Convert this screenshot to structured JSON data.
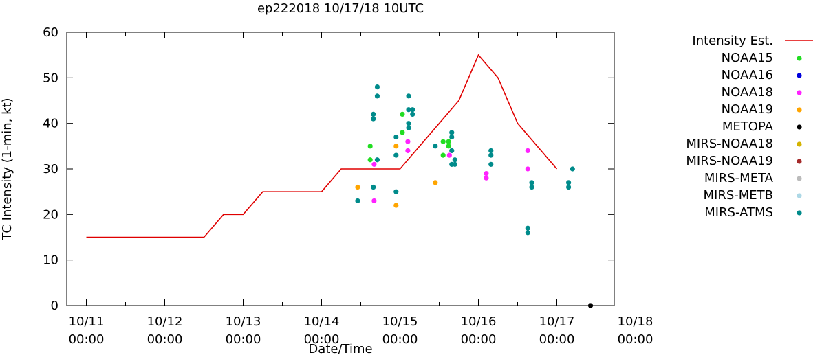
{
  "chart_data": {
    "type": "scatter",
    "title": "ep222018 10/17/18 10UTC",
    "xlabel": "Date/Time",
    "ylabel": "TC Intensity (1-min, kt)",
    "ylim": [
      0,
      60
    ],
    "yticks": [
      0,
      10,
      20,
      30,
      40,
      50,
      60
    ],
    "xlim": [
      0,
      7
    ],
    "x_unit": "days since 10/11 00:00",
    "xticks": [
      {
        "x": 0,
        "line1": "10/11",
        "line2": "00:00"
      },
      {
        "x": 1,
        "line1": "10/12",
        "line2": "00:00"
      },
      {
        "x": 2,
        "line1": "10/13",
        "line2": "00:00"
      },
      {
        "x": 3,
        "line1": "10/14",
        "line2": "00:00"
      },
      {
        "x": 4,
        "line1": "10/15",
        "line2": "00:00"
      },
      {
        "x": 5,
        "line1": "10/16",
        "line2": "00:00"
      },
      {
        "x": 6,
        "line1": "10/17",
        "line2": "00:00"
      },
      {
        "x": 7,
        "line1": "10/18",
        "line2": "00:00"
      }
    ],
    "grid": false,
    "legend_position": "right",
    "series": [
      {
        "name": "Intensity Est.",
        "kind": "line",
        "color": "#e00000",
        "points": [
          [
            0,
            15
          ],
          [
            1.5,
            15
          ],
          [
            1.75,
            20
          ],
          [
            2,
            20
          ],
          [
            2.25,
            25
          ],
          [
            3,
            25
          ],
          [
            3.25,
            30
          ],
          [
            4,
            30
          ],
          [
            4.5,
            40
          ],
          [
            4.75,
            45
          ],
          [
            5,
            55
          ],
          [
            5.25,
            50
          ],
          [
            5.5,
            40
          ],
          [
            6,
            30
          ]
        ]
      },
      {
        "name": "NOAA15",
        "kind": "point",
        "color": "#22dd22",
        "points": [
          [
            3.62,
            35
          ],
          [
            3.62,
            32
          ],
          [
            4.03,
            42
          ],
          [
            4.03,
            38
          ],
          [
            4.55,
            36
          ],
          [
            4.55,
            33
          ],
          [
            4.62,
            36
          ],
          [
            4.62,
            35
          ]
        ]
      },
      {
        "name": "NOAA16",
        "kind": "point",
        "color": "#0000dd",
        "points": []
      },
      {
        "name": "NOAA18",
        "kind": "point",
        "color": "#ff22ff",
        "points": [
          [
            3.67,
            31
          ],
          [
            3.67,
            23
          ],
          [
            4.1,
            36
          ],
          [
            4.1,
            34
          ],
          [
            4.63,
            33
          ],
          [
            5.1,
            29
          ],
          [
            5.1,
            28
          ],
          [
            5.63,
            34
          ],
          [
            5.63,
            30
          ]
        ]
      },
      {
        "name": "NOAA19",
        "kind": "point",
        "color": "#ffa500",
        "points": [
          [
            3.46,
            26
          ],
          [
            3.95,
            35
          ],
          [
            3.95,
            22
          ],
          [
            4.45,
            27
          ]
        ]
      },
      {
        "name": "METOPA",
        "kind": "point",
        "color": "#000000",
        "points": [
          [
            6.43,
            0
          ]
        ]
      },
      {
        "name": "MIRS-NOAA18",
        "kind": "point",
        "color": "#d4b300",
        "points": []
      },
      {
        "name": "MIRS-NOAA19",
        "kind": "point",
        "color": "#a52a2a",
        "points": []
      },
      {
        "name": "MIRS-META",
        "kind": "point",
        "color": "#bbbbbb",
        "points": []
      },
      {
        "name": "MIRS-METB",
        "kind": "point",
        "color": "#add8e6",
        "points": []
      },
      {
        "name": "MIRS-ATMS",
        "kind": "point",
        "color": "#008b8b",
        "points": [
          [
            3.46,
            23
          ],
          [
            3.66,
            42
          ],
          [
            3.66,
            41
          ],
          [
            3.66,
            26
          ],
          [
            3.71,
            48
          ],
          [
            3.71,
            46
          ],
          [
            3.71,
            32
          ],
          [
            3.95,
            37
          ],
          [
            3.95,
            33
          ],
          [
            3.95,
            25
          ],
          [
            4.11,
            46
          ],
          [
            4.11,
            43
          ],
          [
            4.11,
            40
          ],
          [
            4.11,
            39
          ],
          [
            4.16,
            43
          ],
          [
            4.16,
            42
          ],
          [
            4.45,
            35
          ],
          [
            4.66,
            38
          ],
          [
            4.66,
            37
          ],
          [
            4.66,
            34
          ],
          [
            4.66,
            31
          ],
          [
            4.7,
            32
          ],
          [
            4.7,
            31
          ],
          [
            5.16,
            34
          ],
          [
            5.16,
            33
          ],
          [
            5.16,
            31
          ],
          [
            5.63,
            17
          ],
          [
            5.63,
            16
          ],
          [
            5.68,
            27
          ],
          [
            5.68,
            26
          ],
          [
            6.15,
            27
          ],
          [
            6.15,
            26
          ],
          [
            6.2,
            30
          ]
        ]
      }
    ]
  }
}
